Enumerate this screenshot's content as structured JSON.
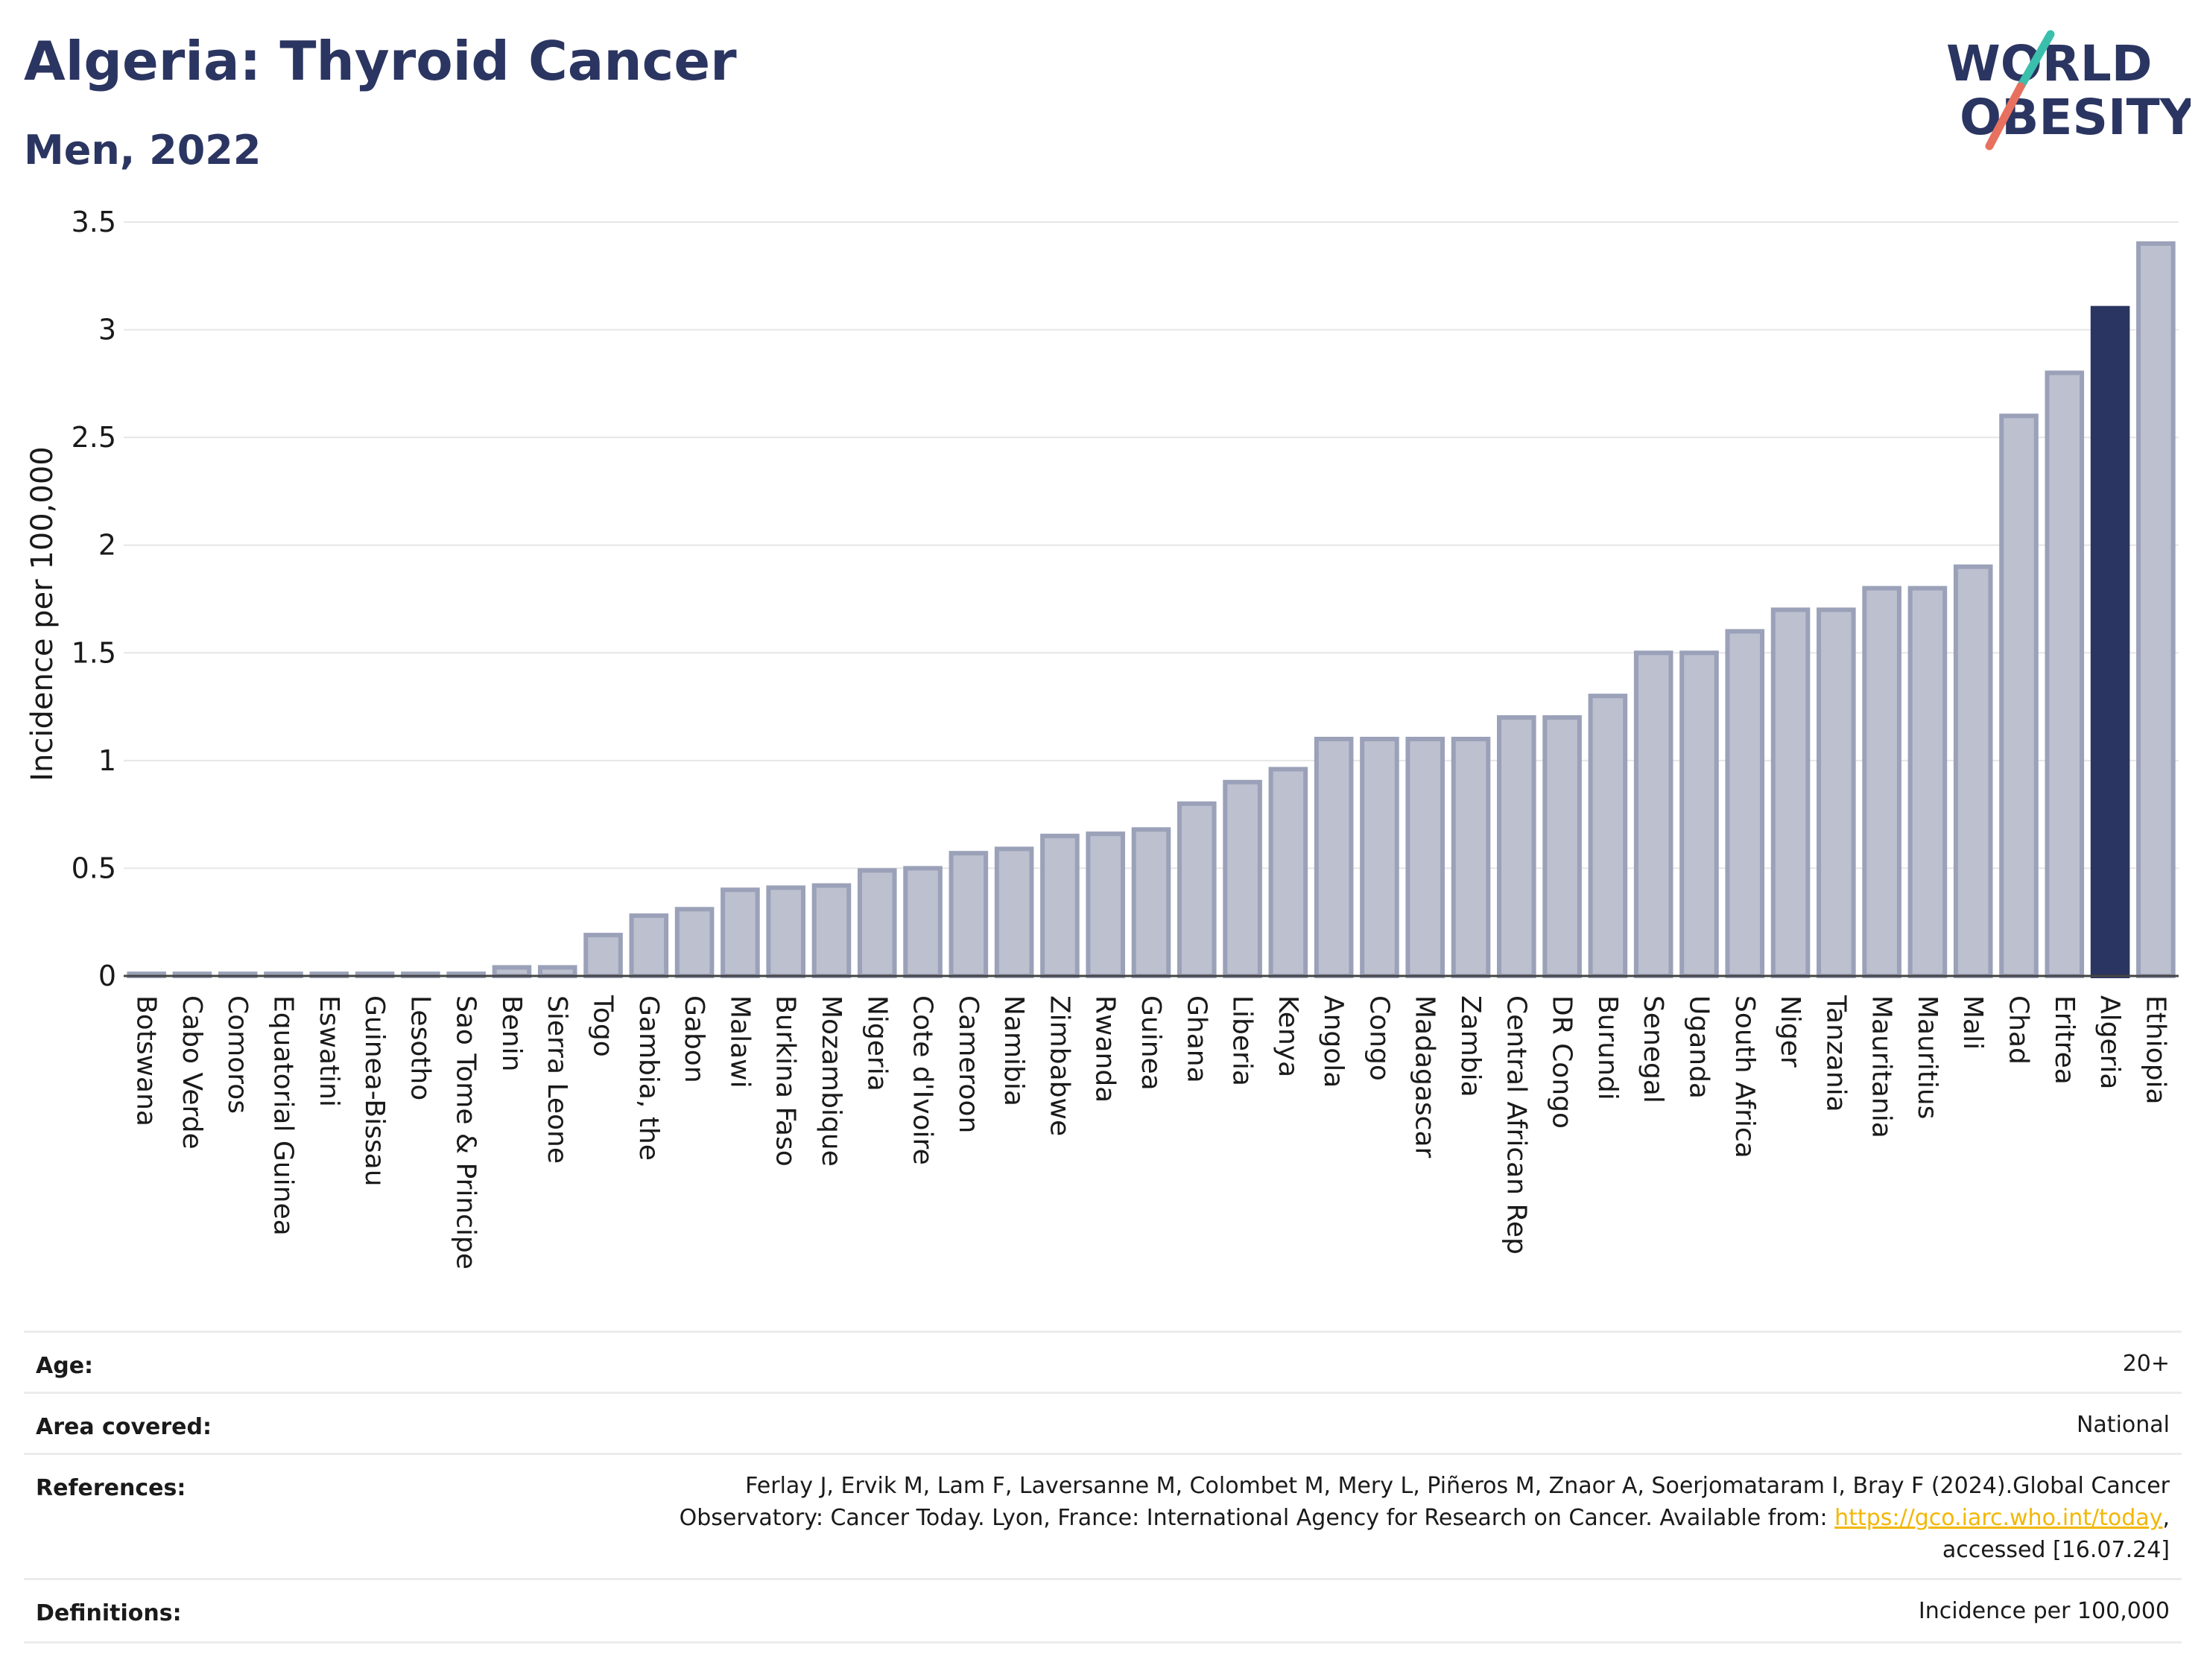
{
  "header": {
    "title": "Algeria: Thyroid Cancer",
    "subtitle": "Men, 2022"
  },
  "logo": {
    "line1": "WORLD",
    "line2": "OBESITY",
    "colors": {
      "text": "#2b3561",
      "slash_top": "#3bbfad",
      "slash_bottom": "#e8705f"
    }
  },
  "chart_data": {
    "type": "bar",
    "ylabel": "Incidence per 100,000",
    "ylim": [
      0,
      3.5
    ],
    "yticks": [
      0,
      0.5,
      1,
      1.5,
      2,
      2.5,
      3,
      3.5
    ],
    "ytick_labels": [
      "0",
      "0.5",
      "1",
      "1.5",
      "2",
      "2.5",
      "3",
      "3.5"
    ],
    "grid": true,
    "highlight": "Algeria",
    "colors": {
      "bar": "#bcc0cf",
      "bar_edge": "#9aa1b8",
      "highlight": "#2b3561"
    },
    "categories": [
      "Botswana",
      "Cabo Verde",
      "Comoros",
      "Equatorial Guinea",
      "Eswatini",
      "Guinea-Bissau",
      "Lesotho",
      "Sao Tome & Principe",
      "Benin",
      "Sierra Leone",
      "Togo",
      "Gambia, the",
      "Gabon",
      "Malawi",
      "Burkina Faso",
      "Mozambique",
      "Nigeria",
      "Cote d'Ivoire",
      "Cameroon",
      "Namibia",
      "Zimbabwe",
      "Rwanda",
      "Guinea",
      "Ghana",
      "Liberia",
      "Kenya",
      "Angola",
      "Congo",
      "Madagascar",
      "Zambia",
      "Central African Rep",
      "DR Congo",
      "Burundi",
      "Senegal",
      "Uganda",
      "South Africa",
      "Niger",
      "Tanzania",
      "Mauritania",
      "Mauritius",
      "Mali",
      "Chad",
      "Eritrea",
      "Algeria",
      "Ethiopia"
    ],
    "values": [
      0.01,
      0.01,
      0.01,
      0.01,
      0.01,
      0.01,
      0.01,
      0.01,
      0.04,
      0.04,
      0.19,
      0.28,
      0.31,
      0.4,
      0.41,
      0.42,
      0.49,
      0.5,
      0.57,
      0.59,
      0.65,
      0.66,
      0.68,
      0.8,
      0.9,
      0.96,
      1.1,
      1.1,
      1.1,
      1.1,
      1.2,
      1.2,
      1.3,
      1.5,
      1.5,
      1.6,
      1.7,
      1.7,
      1.8,
      1.8,
      1.9,
      2.6,
      2.8,
      3.1,
      3.4
    ]
  },
  "meta": {
    "age": {
      "label": "Age:",
      "value": "20+"
    },
    "area": {
      "label": "Area covered:",
      "value": "National"
    },
    "references": {
      "label": "References:",
      "line1": "Ferlay J, Ervik M, Lam F, Laversanne M, Colombet M, Mery L, Piñeros M, Znaor A, Soerjomataram I, Bray F (2024).Global Cancer",
      "line2_prefix": "Observatory: Cancer Today. Lyon, France: International Agency for Research on Cancer. Available from: ",
      "link": "https://gco.iarc.who.int/today",
      "line2_suffix": ",",
      "line3": "accessed [16.07.24]"
    },
    "definitions": {
      "label": "Definitions:",
      "value": "Incidence per 100,000"
    }
  }
}
